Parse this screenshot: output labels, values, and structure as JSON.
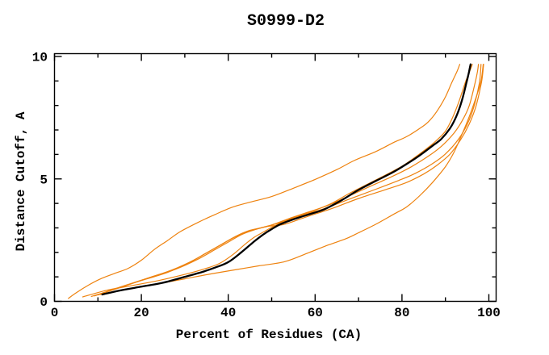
{
  "window": {
    "background": "#ffffff"
  },
  "chart_data": {
    "type": "line",
    "title": "S0999-D2",
    "xlabel": "Percent of Residues (CA)",
    "ylabel": "Distance Cutoff, A",
    "xlim": [
      0,
      101.7
    ],
    "ylim": [
      0,
      10.1
    ],
    "x_major_ticks": [
      0,
      20,
      40,
      60,
      80,
      100
    ],
    "x_minor_ticks": [
      10,
      30,
      50,
      70,
      90
    ],
    "y_major_ticks": [
      0,
      5,
      10
    ],
    "y_minor_ticks": [
      1,
      2,
      3,
      4,
      6,
      7,
      8,
      9
    ],
    "grid": false,
    "legend": "none",
    "frame": "full-box-inward-ticks",
    "axis_color": "#000000",
    "series": [
      {
        "name": "orange-curve-early-riser",
        "color": "#ee820e",
        "width": 1.2,
        "points": [
          [
            3.2,
            0.12
          ],
          [
            5,
            0.35
          ],
          [
            8,
            0.68
          ],
          [
            11,
            0.95
          ],
          [
            14,
            1.15
          ],
          [
            17,
            1.35
          ],
          [
            20,
            1.68
          ],
          [
            23,
            2.12
          ],
          [
            26,
            2.48
          ],
          [
            29,
            2.85
          ],
          [
            33,
            3.22
          ],
          [
            37,
            3.55
          ],
          [
            41,
            3.85
          ],
          [
            45,
            4.05
          ],
          [
            50,
            4.28
          ],
          [
            55,
            4.62
          ],
          [
            60,
            4.98
          ],
          [
            65,
            5.38
          ],
          [
            69,
            5.75
          ],
          [
            74,
            6.12
          ],
          [
            78,
            6.48
          ],
          [
            81,
            6.72
          ],
          [
            84,
            7.05
          ],
          [
            86,
            7.32
          ],
          [
            88,
            7.75
          ],
          [
            90,
            8.35
          ],
          [
            91.5,
            8.95
          ],
          [
            92.7,
            9.4
          ],
          [
            93.3,
            9.68
          ]
        ]
      },
      {
        "name": "orange-curve-hug-above",
        "color": "#ee820e",
        "width": 1.2,
        "points": [
          [
            6.5,
            0.18
          ],
          [
            12,
            0.45
          ],
          [
            18,
            0.65
          ],
          [
            24,
            0.85
          ],
          [
            30,
            1.1
          ],
          [
            35,
            1.35
          ],
          [
            38,
            1.55
          ],
          [
            41,
            1.9
          ],
          [
            44,
            2.35
          ],
          [
            46,
            2.62
          ],
          [
            48,
            2.82
          ],
          [
            50,
            3.02
          ],
          [
            53,
            3.28
          ],
          [
            56,
            3.48
          ],
          [
            60,
            3.72
          ],
          [
            64,
            4.02
          ],
          [
            68,
            4.42
          ],
          [
            72,
            4.78
          ],
          [
            76,
            5.14
          ],
          [
            80,
            5.52
          ],
          [
            83,
            5.88
          ],
          [
            86,
            6.28
          ],
          [
            88,
            6.58
          ],
          [
            90,
            6.95
          ],
          [
            91.5,
            7.45
          ],
          [
            93,
            8.1
          ],
          [
            94.5,
            8.9
          ],
          [
            95.6,
            9.4
          ],
          [
            96.2,
            9.68
          ]
        ]
      },
      {
        "name": "orange-curve-bump-a",
        "color": "#ee820e",
        "width": 1.2,
        "points": [
          [
            8.5,
            0.2
          ],
          [
            14,
            0.5
          ],
          [
            20,
            0.85
          ],
          [
            26,
            1.18
          ],
          [
            31,
            1.58
          ],
          [
            35,
            1.98
          ],
          [
            38,
            2.28
          ],
          [
            41,
            2.58
          ],
          [
            44,
            2.82
          ],
          [
            47,
            2.98
          ],
          [
            50,
            3.12
          ],
          [
            54,
            3.38
          ],
          [
            58,
            3.62
          ],
          [
            63,
            3.92
          ],
          [
            68,
            4.32
          ],
          [
            73,
            4.72
          ],
          [
            78,
            5.12
          ],
          [
            82,
            5.48
          ],
          [
            86,
            5.92
          ],
          [
            89,
            6.32
          ],
          [
            92,
            6.88
          ],
          [
            94,
            7.42
          ],
          [
            95.5,
            8.0
          ],
          [
            96.8,
            8.9
          ],
          [
            97.4,
            9.4
          ],
          [
            97.6,
            9.68
          ]
        ]
      },
      {
        "name": "orange-curve-bump-b",
        "color": "#ee820e",
        "width": 1.2,
        "points": [
          [
            9.2,
            0.22
          ],
          [
            15,
            0.58
          ],
          [
            21,
            0.92
          ],
          [
            27,
            1.28
          ],
          [
            32,
            1.68
          ],
          [
            36,
            2.08
          ],
          [
            39,
            2.38
          ],
          [
            42,
            2.68
          ],
          [
            45,
            2.9
          ],
          [
            48,
            3.02
          ],
          [
            52,
            3.22
          ],
          [
            57,
            3.52
          ],
          [
            62,
            3.78
          ],
          [
            68,
            4.18
          ],
          [
            74,
            4.58
          ],
          [
            79,
            4.92
          ],
          [
            83,
            5.22
          ],
          [
            87,
            5.62
          ],
          [
            90,
            6.02
          ],
          [
            93,
            6.62
          ],
          [
            95,
            7.22
          ],
          [
            96.5,
            7.92
          ],
          [
            97.8,
            8.9
          ],
          [
            98.2,
            9.68
          ]
        ]
      },
      {
        "name": "orange-curve-bump-c",
        "color": "#ee820e",
        "width": 1.2,
        "points": [
          [
            10,
            0.26
          ],
          [
            16,
            0.62
          ],
          [
            22,
            0.98
          ],
          [
            28,
            1.32
          ],
          [
            33,
            1.72
          ],
          [
            37,
            2.12
          ],
          [
            40,
            2.42
          ],
          [
            43,
            2.72
          ],
          [
            46,
            2.92
          ],
          [
            49,
            3.06
          ],
          [
            53,
            3.15
          ],
          [
            58,
            3.45
          ],
          [
            64,
            3.8
          ],
          [
            70,
            4.2
          ],
          [
            76,
            4.55
          ],
          [
            81,
            4.85
          ],
          [
            85,
            5.2
          ],
          [
            88,
            5.55
          ],
          [
            91,
            6.0
          ],
          [
            93.5,
            6.6
          ],
          [
            95.5,
            7.25
          ],
          [
            97,
            7.95
          ],
          [
            98.3,
            8.95
          ],
          [
            98.8,
            9.68
          ]
        ]
      },
      {
        "name": "orange-curve-laggard",
        "color": "#ee820e",
        "width": 1.2,
        "points": [
          [
            10.5,
            0.28
          ],
          [
            17,
            0.5
          ],
          [
            24,
            0.72
          ],
          [
            30,
            0.92
          ],
          [
            36,
            1.12
          ],
          [
            42,
            1.3
          ],
          [
            47,
            1.45
          ],
          [
            53,
            1.62
          ],
          [
            58,
            1.95
          ],
          [
            63,
            2.3
          ],
          [
            67,
            2.55
          ],
          [
            70,
            2.8
          ],
          [
            74,
            3.15
          ],
          [
            78,
            3.55
          ],
          [
            81,
            3.85
          ],
          [
            84,
            4.3
          ],
          [
            87,
            4.85
          ],
          [
            90,
            5.5
          ],
          [
            92,
            6.1
          ],
          [
            94,
            6.9
          ],
          [
            95.5,
            7.55
          ],
          [
            97,
            8.3
          ],
          [
            98.2,
            9.0
          ],
          [
            98.7,
            9.68
          ]
        ]
      },
      {
        "name": "black-curve-main",
        "color": "#000000",
        "width": 2.3,
        "points": [
          [
            11,
            0.28
          ],
          [
            15,
            0.44
          ],
          [
            20,
            0.6
          ],
          [
            25,
            0.76
          ],
          [
            30,
            1.0
          ],
          [
            34,
            1.2
          ],
          [
            37,
            1.38
          ],
          [
            40,
            1.6
          ],
          [
            43,
            2.0
          ],
          [
            46,
            2.45
          ],
          [
            48,
            2.72
          ],
          [
            50,
            2.95
          ],
          [
            52,
            3.15
          ],
          [
            55,
            3.35
          ],
          [
            58,
            3.52
          ],
          [
            62,
            3.75
          ],
          [
            66,
            4.12
          ],
          [
            70,
            4.55
          ],
          [
            74,
            4.92
          ],
          [
            78,
            5.28
          ],
          [
            81,
            5.6
          ],
          [
            84,
            5.95
          ],
          [
            87,
            6.35
          ],
          [
            89,
            6.62
          ],
          [
            91,
            7.05
          ],
          [
            92.5,
            7.55
          ],
          [
            93.8,
            8.2
          ],
          [
            94.8,
            8.9
          ],
          [
            95.4,
            9.35
          ],
          [
            95.8,
            9.68
          ]
        ]
      }
    ]
  }
}
